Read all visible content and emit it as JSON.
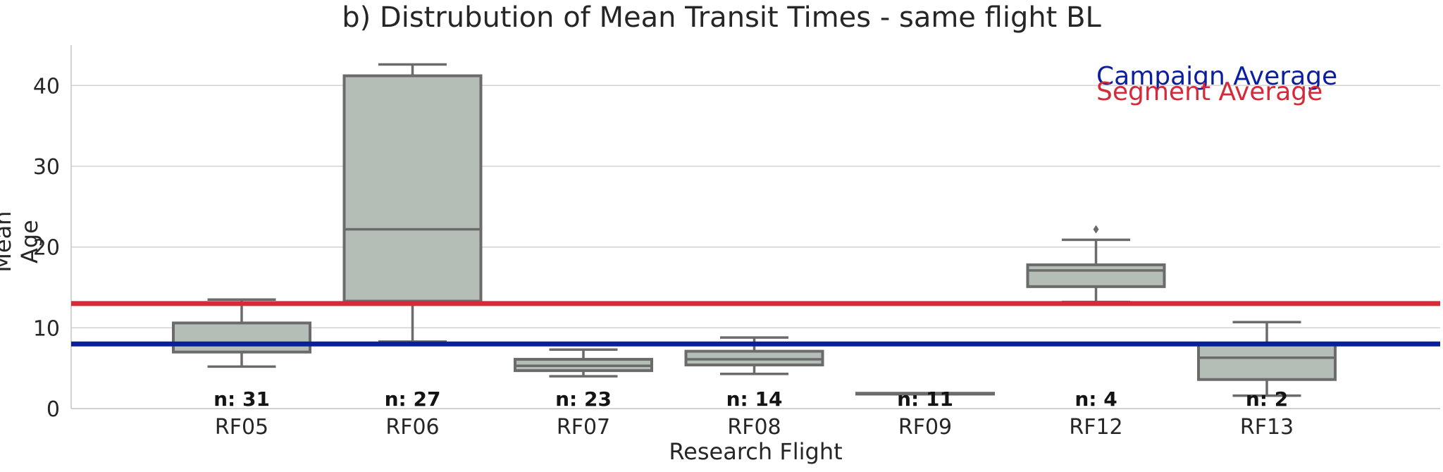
{
  "chart_data": {
    "type": "box",
    "title": "b) Distrubution of Mean Transit Times - same flight BL",
    "xlabel": "Research Flight",
    "ylabel": "Mean Age",
    "ylim": [
      0,
      45
    ],
    "yticks": [
      0,
      10,
      20,
      30,
      40
    ],
    "grid": "horizontal",
    "categories": [
      "RF05",
      "RF06",
      "RF07",
      "RF08",
      "RF09",
      "RF12",
      "RF13"
    ],
    "boxes": [
      {
        "category": "RF05",
        "whisker_low": 5.2,
        "q1": 7.0,
        "median": 8.0,
        "q3": 10.6,
        "whisker_high": 13.5,
        "n_label": "n: 31"
      },
      {
        "category": "RF06",
        "whisker_low": 8.3,
        "q1": 13.3,
        "median": 22.2,
        "q3": 41.2,
        "whisker_high": 42.6,
        "n_label": "n: 27"
      },
      {
        "category": "RF07",
        "whisker_low": 4.0,
        "q1": 4.7,
        "median": 5.3,
        "q3": 6.1,
        "whisker_high": 7.3,
        "n_label": "n: 23"
      },
      {
        "category": "RF08",
        "whisker_low": 4.3,
        "q1": 5.4,
        "median": 6.1,
        "q3": 7.1,
        "whisker_high": 8.8,
        "n_label": "n: 14"
      },
      {
        "category": "RF09",
        "whisker_low": 1.8,
        "q1": 1.8,
        "median": 1.8,
        "q3": 1.9,
        "whisker_high": 1.9,
        "n_label": "n: 11"
      },
      {
        "category": "RF12",
        "whisker_low": 13.2,
        "q1": 15.1,
        "median": 17.1,
        "q3": 17.8,
        "whisker_high": 20.9,
        "outliers": [
          22.2
        ],
        "n_label": "n: 4"
      },
      {
        "category": "RF13",
        "whisker_low": 1.6,
        "q1": 3.6,
        "median": 6.3,
        "q3": 8.1,
        "whisker_high": 10.7,
        "n_label": "n: 2"
      }
    ],
    "reference_lines": [
      {
        "name": "Campaign Average",
        "y": 8.0,
        "color": "#0a1fa0"
      },
      {
        "name": "Segment Average",
        "y": 13.0,
        "color": "#d42a3a"
      }
    ],
    "box_color": "#b4bdb6",
    "box_edge_color": "#6b6b6b",
    "legend_position": "top-right"
  }
}
